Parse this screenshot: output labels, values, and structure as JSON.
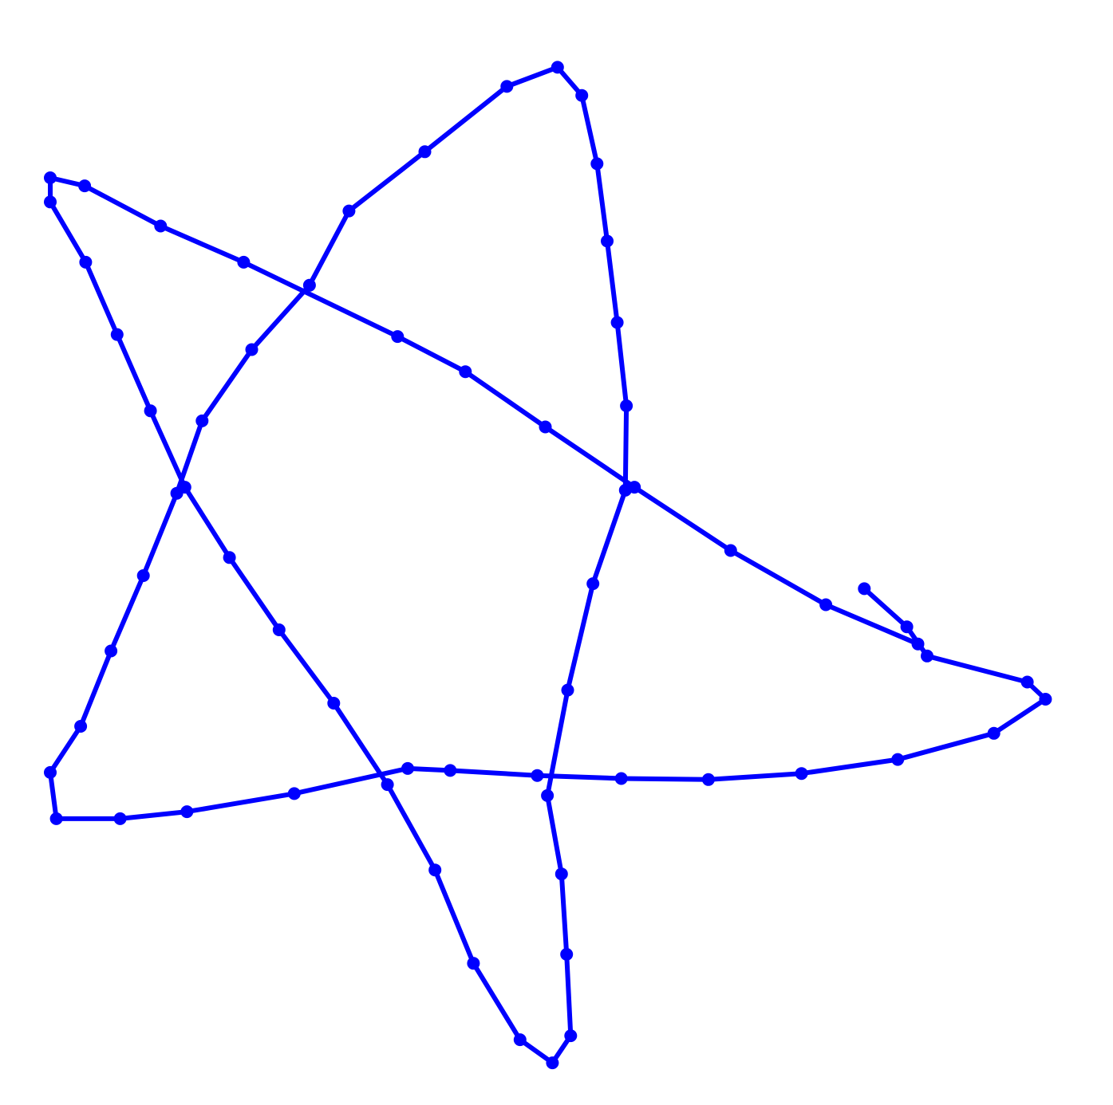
{
  "chart_data": {
    "type": "line",
    "grid": false,
    "axes_visible": false,
    "legend": "none",
    "xlim": [
      -0.05,
      1.05
    ],
    "ylim": [
      -0.05,
      1.05
    ],
    "series": [
      {
        "color": "#0000ff",
        "marker": "circle",
        "points": [
          [
            0.804,
            0.464
          ],
          [
            0.846,
            0.426
          ],
          [
            0.866,
            0.397
          ],
          [
            0.965,
            0.371
          ],
          [
            0.983,
            0.354
          ],
          [
            0.932,
            0.32
          ],
          [
            0.837,
            0.294
          ],
          [
            0.742,
            0.28
          ],
          [
            0.65,
            0.274
          ],
          [
            0.564,
            0.275
          ],
          [
            0.481,
            0.278
          ],
          [
            0.395,
            0.283
          ],
          [
            0.353,
            0.285
          ],
          [
            0.241,
            0.26
          ],
          [
            0.135,
            0.242
          ],
          [
            0.069,
            0.235
          ],
          [
            0.006,
            0.235
          ],
          [
            0.0,
            0.281
          ],
          [
            0.03,
            0.327
          ],
          [
            0.06,
            0.402
          ],
          [
            0.092,
            0.477
          ],
          [
            0.125,
            0.559
          ],
          [
            0.15,
            0.631
          ],
          [
            0.199,
            0.702
          ],
          [
            0.256,
            0.766
          ],
          [
            0.295,
            0.84
          ],
          [
            0.37,
            0.899
          ],
          [
            0.451,
            0.964
          ],
          [
            0.501,
            0.983
          ],
          [
            0.525,
            0.955
          ],
          [
            0.54,
            0.887
          ],
          [
            0.55,
            0.81
          ],
          [
            0.56,
            0.729
          ],
          [
            0.569,
            0.646
          ],
          [
            0.568,
            0.562
          ],
          [
            0.536,
            0.469
          ],
          [
            0.511,
            0.363
          ],
          [
            0.491,
            0.258
          ],
          [
            0.505,
            0.18
          ],
          [
            0.51,
            0.1
          ],
          [
            0.514,
            0.019
          ],
          [
            0.496,
            -0.008
          ],
          [
            0.464,
            0.015
          ],
          [
            0.418,
            0.091
          ],
          [
            0.38,
            0.184
          ],
          [
            0.333,
            0.269
          ],
          [
            0.28,
            0.35
          ],
          [
            0.226,
            0.423
          ],
          [
            0.177,
            0.495
          ],
          [
            0.133,
            0.565
          ],
          [
            0.099,
            0.641
          ],
          [
            0.066,
            0.717
          ],
          [
            0.035,
            0.789
          ],
          [
            0.0,
            0.849
          ],
          [
            0.0,
            0.873
          ],
          [
            0.034,
            0.865
          ],
          [
            0.109,
            0.825
          ],
          [
            0.191,
            0.789
          ],
          [
            0.343,
            0.715
          ],
          [
            0.41,
            0.68
          ],
          [
            0.489,
            0.625
          ],
          [
            0.577,
            0.565
          ],
          [
            0.672,
            0.502
          ],
          [
            0.766,
            0.448
          ],
          [
            0.857,
            0.409
          ]
        ]
      }
    ]
  }
}
